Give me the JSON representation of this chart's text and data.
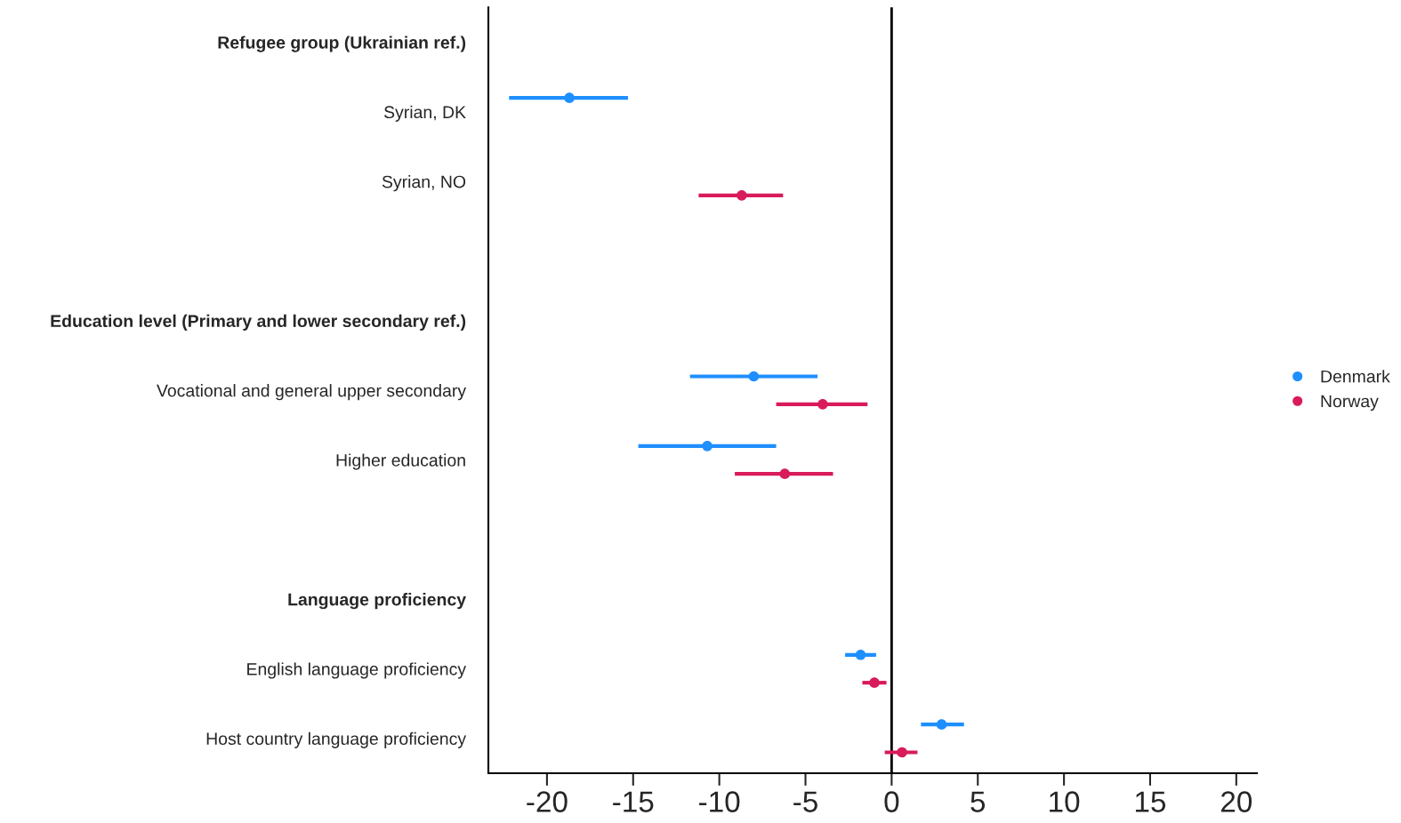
{
  "chart_data": {
    "type": "scatter",
    "orientation": "horizontal",
    "categories": [
      "Refugee group (Ukrainian ref.)",
      "Syrian, DK",
      "Syrian, NO",
      null,
      "Education level (Primary and lower secondary ref.)",
      "Vocational and general upper secondary",
      "Higher education",
      null,
      "Language proficiency",
      "English language proficiency",
      "Host country language proficiency"
    ],
    "series": [
      {
        "name": "Denmark",
        "color": "#1e8fff",
        "values": [
          null,
          -18.7,
          null,
          null,
          null,
          -8.0,
          -10.7,
          null,
          null,
          -1.8,
          2.9
        ],
        "errors": [
          null,
          [
            -22.2,
            -15.3
          ],
          null,
          null,
          null,
          [
            -11.7,
            -4.3
          ],
          [
            -14.7,
            -6.7
          ],
          null,
          null,
          [
            -2.7,
            -0.9
          ],
          [
            1.7,
            4.2
          ]
        ]
      },
      {
        "name": "Norway",
        "color": "#d81b5b",
        "values": [
          null,
          null,
          -8.7,
          null,
          null,
          -4.0,
          -6.2,
          null,
          null,
          -1.0,
          0.6
        ],
        "errors": [
          null,
          null,
          [
            -11.2,
            -6.3
          ],
          null,
          null,
          [
            -6.7,
            -1.4
          ],
          [
            -9.1,
            -3.4
          ],
          null,
          null,
          [
            -1.7,
            -0.3
          ],
          [
            -0.4,
            1.5
          ]
        ]
      }
    ],
    "xlim": [
      -23.4,
      21.2
    ],
    "xticks": [
      -20,
      -15,
      -10,
      -5,
      0,
      5,
      10,
      15,
      20
    ],
    "ref_lines": [
      {
        "axis": "x",
        "value": 0,
        "color": "#000000"
      }
    ],
    "marker": "circle",
    "grid": false,
    "legend": "right"
  }
}
